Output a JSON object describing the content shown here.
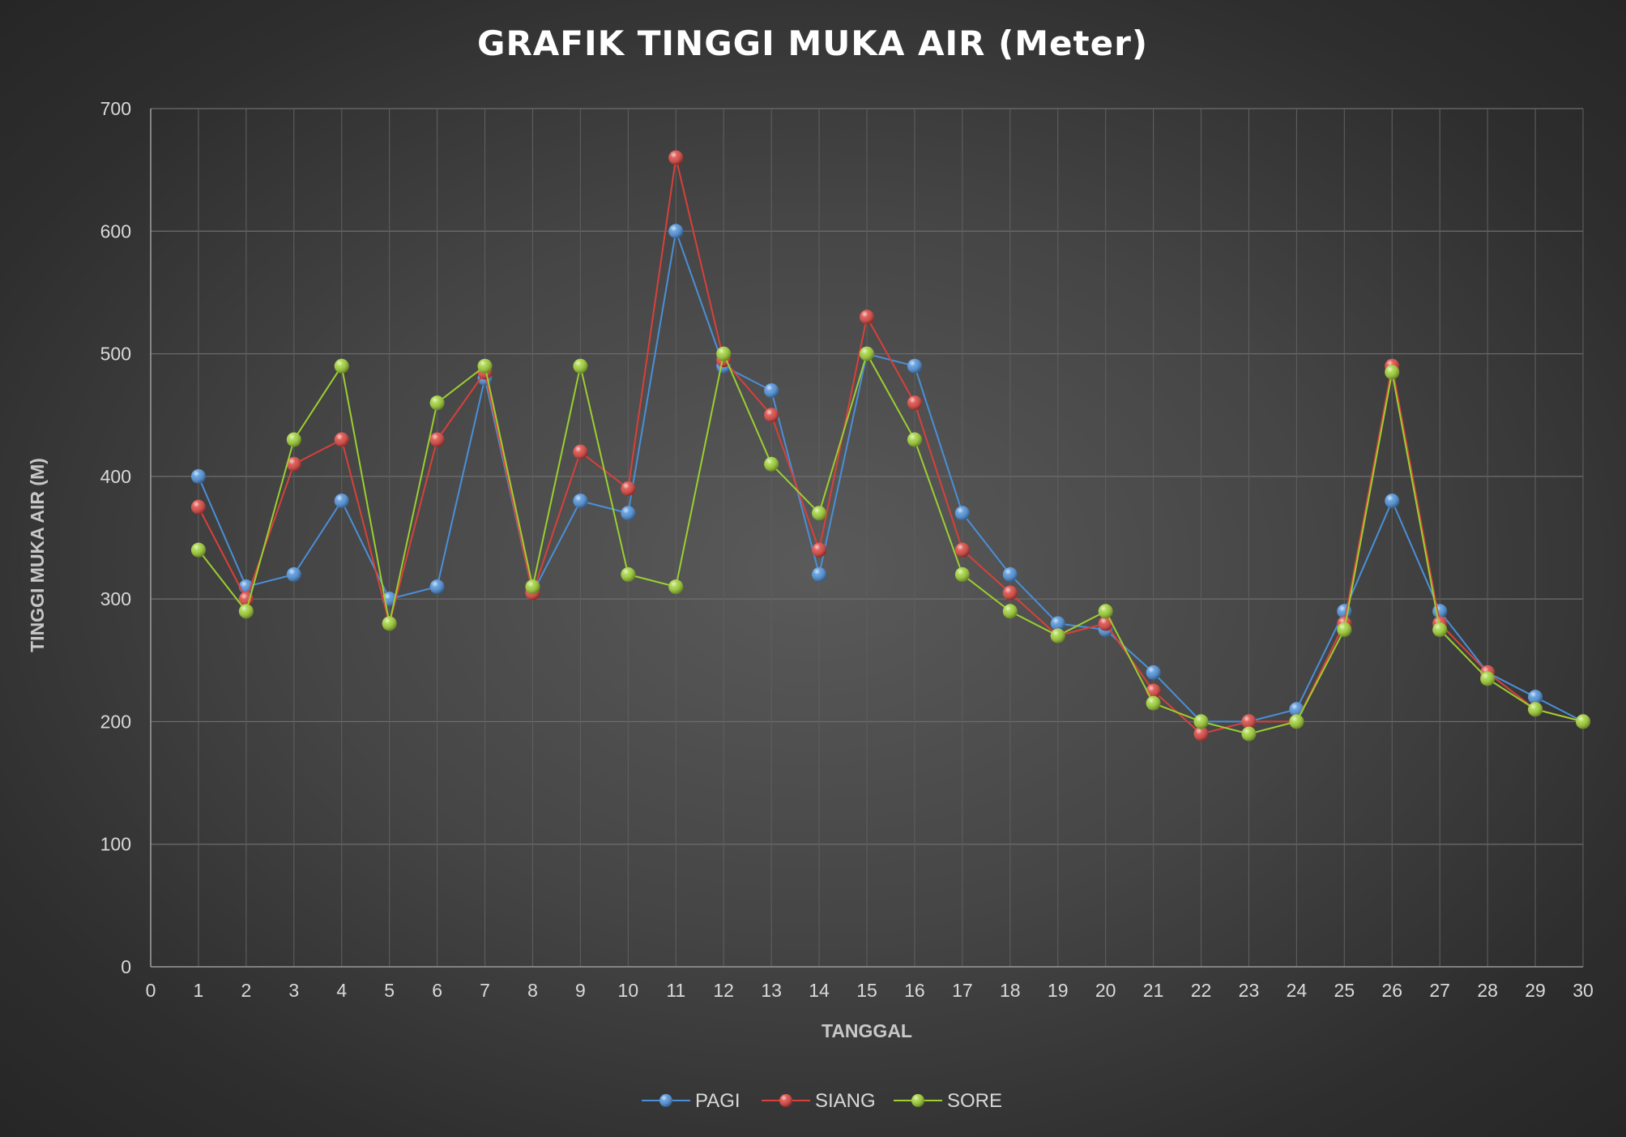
{
  "chart_data": {
    "type": "line",
    "title": "GRAFIK TINGGI MUKA AIR (Meter)",
    "xlabel": "TANGGAL",
    "ylabel": "TINGGI MUKA AIR (M)",
    "xlim": [
      0,
      30
    ],
    "ylim": [
      0,
      700
    ],
    "x_ticks": [
      0,
      1,
      2,
      3,
      4,
      5,
      6,
      7,
      8,
      9,
      10,
      11,
      12,
      13,
      14,
      15,
      16,
      17,
      18,
      19,
      20,
      21,
      22,
      23,
      24,
      25,
      26,
      27,
      28,
      29,
      30
    ],
    "y_ticks": [
      0,
      100,
      200,
      300,
      400,
      500,
      600,
      700
    ],
    "grid": true,
    "legend_position": "bottom",
    "x": [
      1,
      2,
      3,
      4,
      5,
      6,
      7,
      8,
      9,
      10,
      11,
      12,
      13,
      14,
      15,
      16,
      17,
      18,
      19,
      20,
      21,
      22,
      23,
      24,
      25,
      26,
      27,
      28,
      29,
      30
    ],
    "series": [
      {
        "name": "PAGI",
        "color": "#4a8fd9",
        "values": [
          400,
          310,
          320,
          380,
          300,
          310,
          480,
          305,
          380,
          370,
          600,
          490,
          470,
          320,
          500,
          490,
          370,
          320,
          280,
          275,
          240,
          200,
          200,
          210,
          290,
          380,
          290,
          240,
          220,
          200
        ]
      },
      {
        "name": "SIANG",
        "color": "#d9403a",
        "values": [
          375,
          300,
          410,
          430,
          280,
          430,
          485,
          305,
          420,
          390,
          660,
          495,
          450,
          340,
          530,
          460,
          340,
          305,
          270,
          280,
          225,
          190,
          200,
          200,
          280,
          490,
          280,
          240,
          210,
          200
        ]
      },
      {
        "name": "SORE",
        "color": "#9ccf2f",
        "values": [
          340,
          290,
          430,
          490,
          280,
          460,
          490,
          310,
          490,
          320,
          310,
          500,
          410,
          370,
          500,
          430,
          320,
          290,
          270,
          290,
          215,
          200,
          190,
          200,
          275,
          485,
          275,
          235,
          210,
          200
        ]
      }
    ]
  }
}
